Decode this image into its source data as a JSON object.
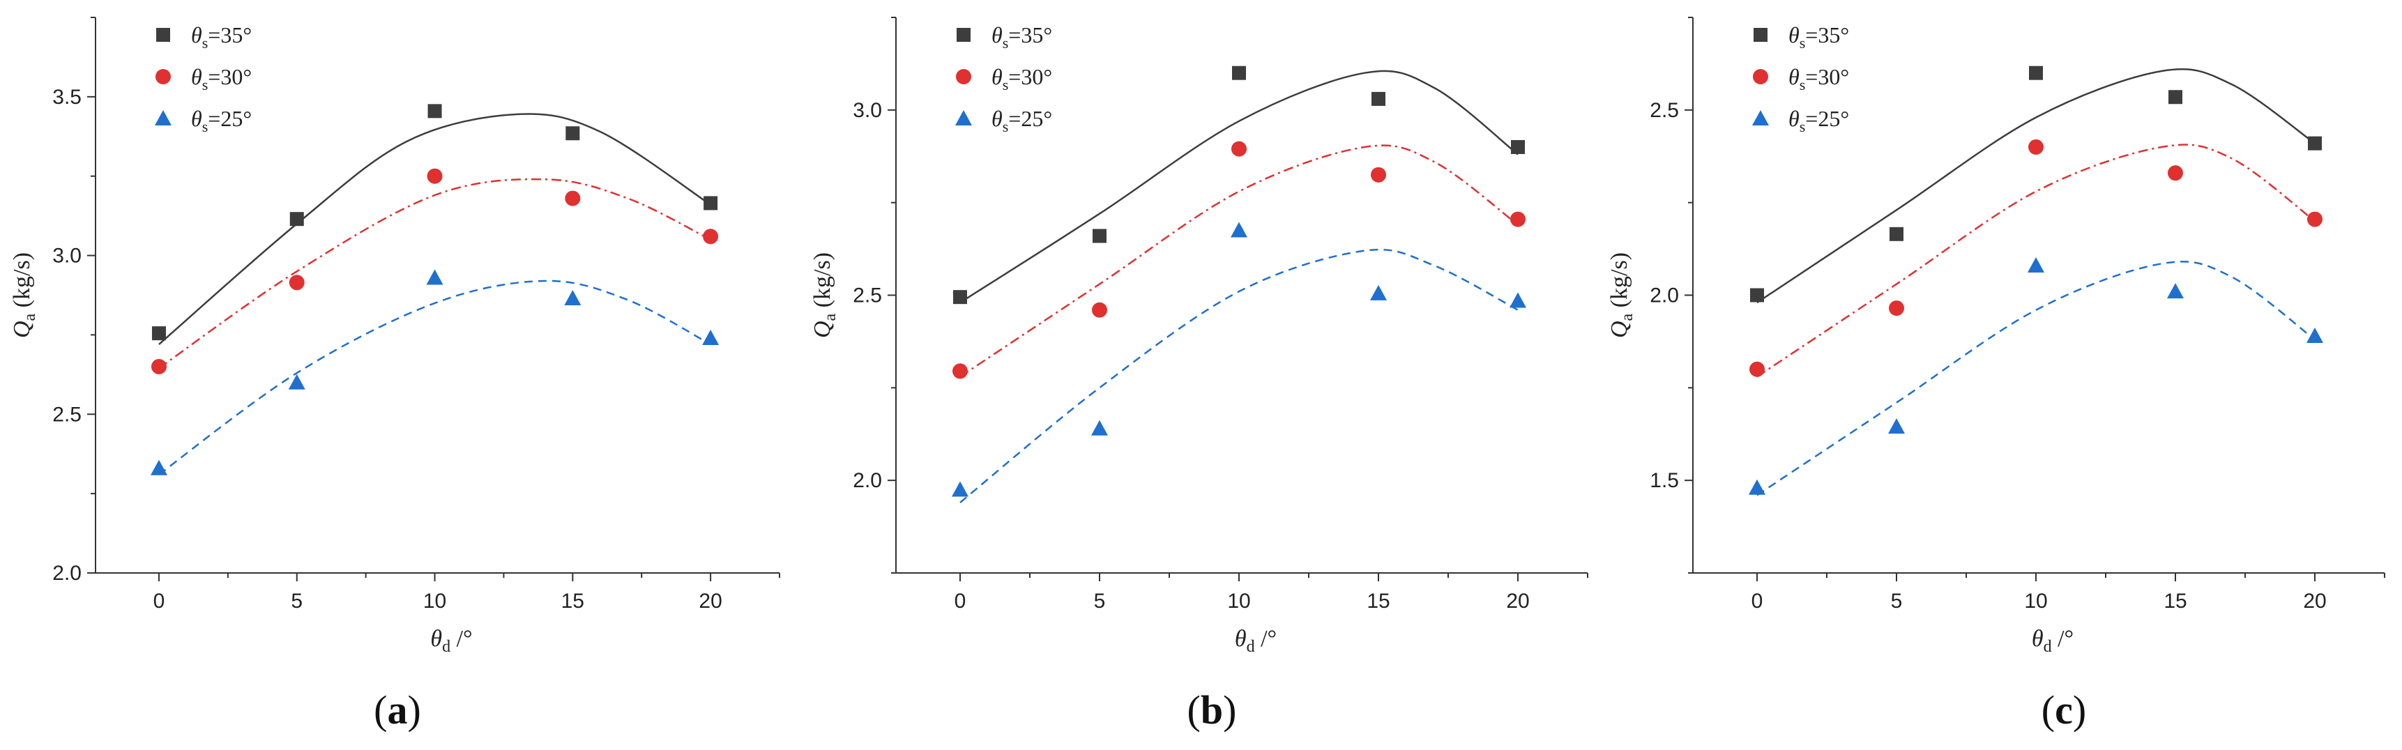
{
  "colors": {
    "s35": "#3d3d3d",
    "s30": "#e03030",
    "s25": "#1f6fd0",
    "axis": "#333333"
  },
  "symbols": {
    "theta": "θ",
    "sub_s": "s",
    "sub_d": "d",
    "Q": "Q",
    "sub_a": "a",
    "degree_suffix": " /°",
    "ylabel_unit": " (kg/s)"
  },
  "chart_data": [
    {
      "type": "scatter",
      "panel": "a",
      "caption": "a",
      "xlabel": "θd /°",
      "ylabel": "Qa (kg/s)",
      "x_ticks": [
        0,
        5,
        10,
        15,
        20
      ],
      "y_ticks": [
        2.0,
        2.5,
        3.0,
        3.5
      ],
      "y_tick_labels": [
        "2.0",
        "2.5",
        "3.0",
        "3.5"
      ],
      "xlim": [
        -2.3,
        22.5
      ],
      "ylim": [
        2.0,
        3.75
      ],
      "legend_position": "top-left",
      "series": [
        {
          "name": "θs=35°",
          "label_pre": "=35°",
          "key": "s35",
          "marker": "square",
          "line": "solid",
          "x": [
            0,
            5,
            10,
            15,
            20
          ],
          "values": [
            2.755,
            3.115,
            3.455,
            3.385,
            3.165
          ],
          "fit": [
            [
              0,
              2.72
            ],
            [
              5,
              3.1
            ],
            [
              9,
              3.36
            ],
            [
              13,
              3.445
            ],
            [
              16,
              3.39
            ],
            [
              20,
              3.16
            ]
          ]
        },
        {
          "name": "θs=30°",
          "label_pre": "=30°",
          "key": "s30",
          "marker": "circle",
          "line": "dashdot",
          "x": [
            0,
            5,
            10,
            15,
            20
          ],
          "values": [
            2.65,
            2.915,
            3.25,
            3.18,
            3.06
          ],
          "fit": [
            [
              0,
              2.645
            ],
            [
              5,
              2.95
            ],
            [
              10,
              3.19
            ],
            [
              14,
              3.24
            ],
            [
              17,
              3.18
            ],
            [
              20,
              3.05
            ]
          ]
        },
        {
          "name": "θs=25°",
          "label_pre": "=25°",
          "key": "s25",
          "marker": "triangle",
          "line": "dashed",
          "x": [
            0,
            5,
            10,
            15,
            20
          ],
          "values": [
            2.33,
            2.6,
            2.93,
            2.865,
            2.74
          ],
          "fit": [
            [
              0,
              2.31
            ],
            [
              5,
              2.63
            ],
            [
              10,
              2.85
            ],
            [
              14,
              2.92
            ],
            [
              17,
              2.86
            ],
            [
              20,
              2.72
            ]
          ]
        }
      ]
    },
    {
      "type": "scatter",
      "panel": "b",
      "caption": "b",
      "xlabel": "θd /°",
      "ylabel": "Qa (kg/s)",
      "x_ticks": [
        0,
        5,
        10,
        15,
        20
      ],
      "y_ticks": [
        2.0,
        2.5,
        3.0
      ],
      "y_tick_labels": [
        "2.0",
        "2.5",
        "3.0"
      ],
      "xlim": [
        -2.3,
        22.5
      ],
      "ylim": [
        1.75,
        3.25
      ],
      "legend_position": "top-left",
      "series": [
        {
          "name": "θs=35°",
          "label_pre": "=35°",
          "key": "s35",
          "marker": "square",
          "line": "solid",
          "x": [
            0,
            5,
            10,
            15,
            20
          ],
          "values": [
            2.495,
            2.66,
            3.1,
            3.03,
            2.9
          ],
          "fit": [
            [
              0,
              2.48
            ],
            [
              5,
              2.72
            ],
            [
              10,
              2.97
            ],
            [
              14.5,
              3.1
            ],
            [
              17,
              3.06
            ],
            [
              20,
              2.88
            ]
          ]
        },
        {
          "name": "θs=30°",
          "label_pre": "=30°",
          "key": "s30",
          "marker": "circle",
          "line": "dashdot",
          "x": [
            0,
            5,
            10,
            15,
            20
          ],
          "values": [
            2.295,
            2.46,
            2.895,
            2.825,
            2.705
          ],
          "fit": [
            [
              0,
              2.28
            ],
            [
              5,
              2.53
            ],
            [
              10,
              2.78
            ],
            [
              14.5,
              2.9
            ],
            [
              17,
              2.86
            ],
            [
              20,
              2.69
            ]
          ]
        },
        {
          "name": "θs=25°",
          "label_pre": "=25°",
          "key": "s25",
          "marker": "triangle",
          "line": "dashed",
          "x": [
            0,
            5,
            10,
            15,
            20
          ],
          "values": [
            1.975,
            2.14,
            2.675,
            2.505,
            2.485
          ],
          "fit": [
            [
              0,
              1.94
            ],
            [
              5,
              2.25
            ],
            [
              10,
              2.51
            ],
            [
              14.5,
              2.62
            ],
            [
              17,
              2.58
            ],
            [
              20,
              2.46
            ]
          ]
        }
      ]
    },
    {
      "type": "scatter",
      "panel": "c",
      "caption": "c",
      "xlabel": "θd /°",
      "ylabel": "Qa (kg/s)",
      "x_ticks": [
        0,
        5,
        10,
        15,
        20
      ],
      "y_ticks": [
        1.5,
        2.0,
        2.5
      ],
      "y_tick_labels": [
        "1.5",
        "2.0",
        "2.5"
      ],
      "xlim": [
        -2.3,
        22.5
      ],
      "ylim": [
        1.25,
        2.75
      ],
      "legend_position": "top-left",
      "series": [
        {
          "name": "θs=35°",
          "label_pre": "=35°",
          "key": "s35",
          "marker": "square",
          "line": "solid",
          "x": [
            0,
            5,
            10,
            15,
            20
          ],
          "values": [
            2.0,
            2.165,
            2.6,
            2.535,
            2.41
          ],
          "fit": [
            [
              0,
              1.98
            ],
            [
              5,
              2.23
            ],
            [
              10,
              2.48
            ],
            [
              14.5,
              2.605
            ],
            [
              17,
              2.57
            ],
            [
              20,
              2.41
            ]
          ]
        },
        {
          "name": "θs=30°",
          "label_pre": "=30°",
          "key": "s30",
          "marker": "circle",
          "line": "dashdot",
          "x": [
            0,
            5,
            10,
            15,
            20
          ],
          "values": [
            1.8,
            1.965,
            2.4,
            2.33,
            2.205
          ],
          "fit": [
            [
              0,
              1.78
            ],
            [
              5,
              2.03
            ],
            [
              10,
              2.28
            ],
            [
              14.5,
              2.4
            ],
            [
              17,
              2.37
            ],
            [
              20,
              2.2
            ]
          ]
        },
        {
          "name": "θs=25°",
          "label_pre": "=25°",
          "key": "s25",
          "marker": "triangle",
          "line": "dashed",
          "x": [
            0,
            5,
            10,
            15,
            20
          ],
          "values": [
            1.48,
            1.645,
            2.08,
            2.01,
            1.89
          ],
          "fit": [
            [
              0,
              1.46
            ],
            [
              5,
              1.71
            ],
            [
              10,
              1.96
            ],
            [
              14.5,
              2.085
            ],
            [
              17,
              2.05
            ],
            [
              20,
              1.88
            ]
          ]
        }
      ]
    }
  ]
}
